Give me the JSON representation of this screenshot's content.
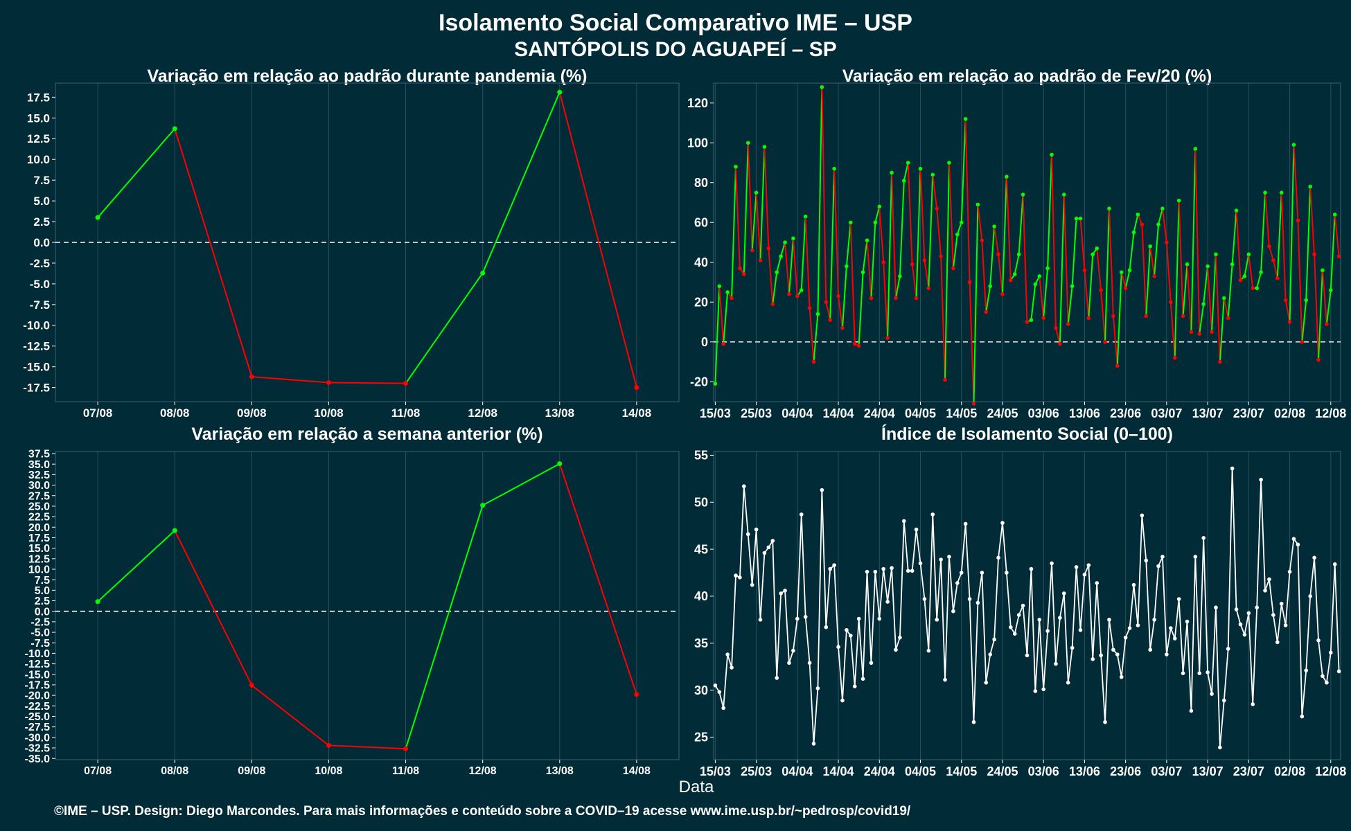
{
  "page": {
    "title": "Isolamento Social Comparativo IME – USP",
    "subtitle": "SANTÓPOLIS DO AGUAPEÍ – SP",
    "xlabel": "Data",
    "footer": "©IME – USP. Design: Diego Marcondes. Para mais informações e conteúdo sobre a COVID–19 acesse www.ime.usp.br/~pedrosp/covid19/"
  },
  "colors": {
    "background": "#022b38",
    "up": "#00ff00",
    "down": "#ff0000",
    "index_line": "#ffffff",
    "grid": "#2a4f5c",
    "zero_line": "#ffffff"
  },
  "chart_data": [
    {
      "id": "pandemia",
      "type": "line",
      "title": "Variação em relação ao padrão durante pandemia (%)",
      "categories": [
        "07/08",
        "08/08",
        "09/08",
        "10/08",
        "11/08",
        "12/08",
        "13/08",
        "14/08"
      ],
      "values": [
        3.0,
        13.7,
        -16.2,
        -16.9,
        -17.0,
        -3.7,
        18.1,
        -17.5
      ],
      "ylim": [
        -19.2,
        19.2
      ],
      "yticks": [
        -17.5,
        -15.0,
        -12.5,
        -10.0,
        -7.5,
        -5.0,
        -2.5,
        0.0,
        2.5,
        5.0,
        7.5,
        10.0,
        12.5,
        15.0,
        17.5
      ],
      "color_rule": "green when increasing, red when decreasing",
      "reference_line": 0
    },
    {
      "id": "fev20",
      "type": "line",
      "title": "Variação em relação ao padrão de Fev/20 (%)",
      "start_date": "2020-03-15",
      "xtick_labels": [
        "15/03",
        "25/03",
        "04/04",
        "14/04",
        "24/04",
        "04/05",
        "14/05",
        "24/05",
        "03/06",
        "13/06",
        "23/06",
        "03/07",
        "13/07",
        "23/07",
        "02/08",
        "12/08"
      ],
      "values": [
        -21,
        28,
        -1,
        25,
        22,
        88,
        37,
        34,
        100,
        46,
        75,
        41,
        98,
        47,
        19,
        35,
        43,
        50,
        24,
        52,
        23,
        26,
        63,
        17,
        -10,
        14,
        128,
        20,
        11,
        87,
        23,
        7,
        38,
        60,
        -1,
        -2,
        35,
        51,
        22,
        60,
        68,
        40,
        2,
        85,
        22,
        33,
        81,
        90,
        39,
        22,
        87,
        41,
        27,
        84,
        67,
        43,
        -19,
        90,
        37,
        54,
        60,
        112,
        30,
        -31,
        69,
        51,
        15,
        28,
        58,
        44,
        24,
        83,
        31,
        34,
        44,
        74,
        10,
        11,
        29,
        33,
        12,
        37,
        94,
        7,
        -1,
        74,
        9,
        28,
        62,
        62,
        36,
        12,
        44,
        47,
        26,
        0,
        67,
        13,
        -12,
        35,
        27,
        36,
        55,
        64,
        59,
        13,
        48,
        33,
        59,
        67,
        50,
        20,
        -8,
        71,
        13,
        39,
        5,
        97,
        4,
        19,
        38,
        5,
        44,
        -10,
        22,
        12,
        39,
        66,
        31,
        33,
        44,
        27,
        27,
        35,
        75,
        48,
        41,
        32,
        75,
        21,
        10,
        99,
        61,
        0,
        21,
        78,
        44,
        -9,
        36,
        9,
        26,
        64,
        43
      ],
      "ylim": [
        -30,
        130
      ],
      "yticks": [
        -20,
        0,
        20,
        40,
        60,
        80,
        100,
        120
      ],
      "color_rule": "green when increasing, red when decreasing",
      "reference_line": 0
    },
    {
      "id": "semana",
      "type": "line",
      "title": "Variação em relação a semana anterior (%)",
      "categories": [
        "07/08",
        "08/08",
        "09/08",
        "10/08",
        "11/08",
        "12/08",
        "13/08",
        "14/08"
      ],
      "values": [
        2.3,
        19.2,
        -17.6,
        -31.9,
        -32.7,
        25.2,
        35.1,
        -19.8
      ],
      "ylim": [
        -35.3,
        38.0
      ],
      "yticks": [
        -35.0,
        -32.5,
        -30.0,
        -27.5,
        -25.0,
        -22.5,
        -20.0,
        -17.5,
        -15.0,
        -12.5,
        -10.0,
        -7.5,
        -5.0,
        -2.5,
        0.0,
        2.5,
        5.0,
        7.5,
        10.0,
        12.5,
        15.0,
        17.5,
        20.0,
        22.5,
        25.0,
        27.5,
        30.0,
        32.5,
        35.0,
        37.5
      ],
      "color_rule": "green when increasing, red when decreasing",
      "reference_line": 0
    },
    {
      "id": "indice",
      "type": "line",
      "title": "Índice de Isolamento Social (0–100)",
      "start_date": "2020-03-15",
      "xtick_labels": [
        "15/03",
        "25/03",
        "04/04",
        "14/04",
        "24/04",
        "04/05",
        "14/05",
        "24/05",
        "03/06",
        "13/06",
        "23/06",
        "03/07",
        "13/07",
        "23/07",
        "02/08",
        "12/08"
      ],
      "values": [
        30.5,
        29.8,
        28.1,
        33.8,
        32.4,
        42.2,
        42.0,
        51.7,
        46.6,
        41.2,
        47.1,
        37.5,
        44.6,
        45.2,
        45.9,
        31.3,
        40.3,
        40.6,
        32.9,
        34.2,
        37.6,
        48.7,
        37.8,
        32.9,
        24.3,
        30.2,
        51.3,
        36.7,
        42.9,
        43.3,
        34.6,
        28.9,
        36.4,
        35.8,
        30.4,
        37.6,
        31.2,
        42.6,
        32.9,
        42.6,
        37.6,
        42.9,
        39.4,
        43.0,
        34.3,
        35.6,
        48.0,
        42.7,
        42.7,
        47.1,
        43.5,
        39.7,
        34.2,
        48.7,
        37.5,
        43.9,
        31.1,
        44.2,
        38.4,
        41.4,
        42.5,
        47.7,
        39.7,
        26.6,
        39.3,
        42.5,
        30.8,
        33.8,
        35.4,
        44.1,
        47.8,
        42.5,
        36.7,
        36.0,
        38.0,
        39.0,
        33.7,
        42.9,
        29.9,
        37.5,
        30.1,
        36.3,
        43.5,
        32.8,
        37.7,
        40.3,
        30.8,
        34.5,
        43.1,
        36.4,
        42.3,
        43.3,
        33.3,
        41.4,
        33.7,
        26.6,
        37.5,
        34.3,
        33.8,
        31.4,
        35.6,
        36.6,
        41.2,
        36.9,
        48.6,
        43.8,
        34.3,
        37.5,
        43.2,
        44.2,
        33.8,
        36.6,
        35.5,
        39.7,
        31.8,
        37.3,
        27.8,
        44.2,
        31.8,
        46.2,
        31.9,
        29.6,
        38.8,
        23.9,
        28.9,
        34.4,
        53.6,
        38.6,
        37.0,
        35.9,
        38.2,
        28.5,
        38.8,
        52.4,
        40.6,
        41.8,
        38.0,
        35.1,
        39.2,
        36.9,
        42.6,
        46.1,
        45.5,
        27.2,
        32.1,
        40.0,
        44.1,
        35.3,
        31.5,
        30.8,
        34.0,
        43.4,
        32.0
      ],
      "ylim": [
        22.6,
        55.4
      ],
      "yticks": [
        25,
        30,
        35,
        40,
        45,
        50,
        55
      ],
      "reference_line": null
    }
  ]
}
